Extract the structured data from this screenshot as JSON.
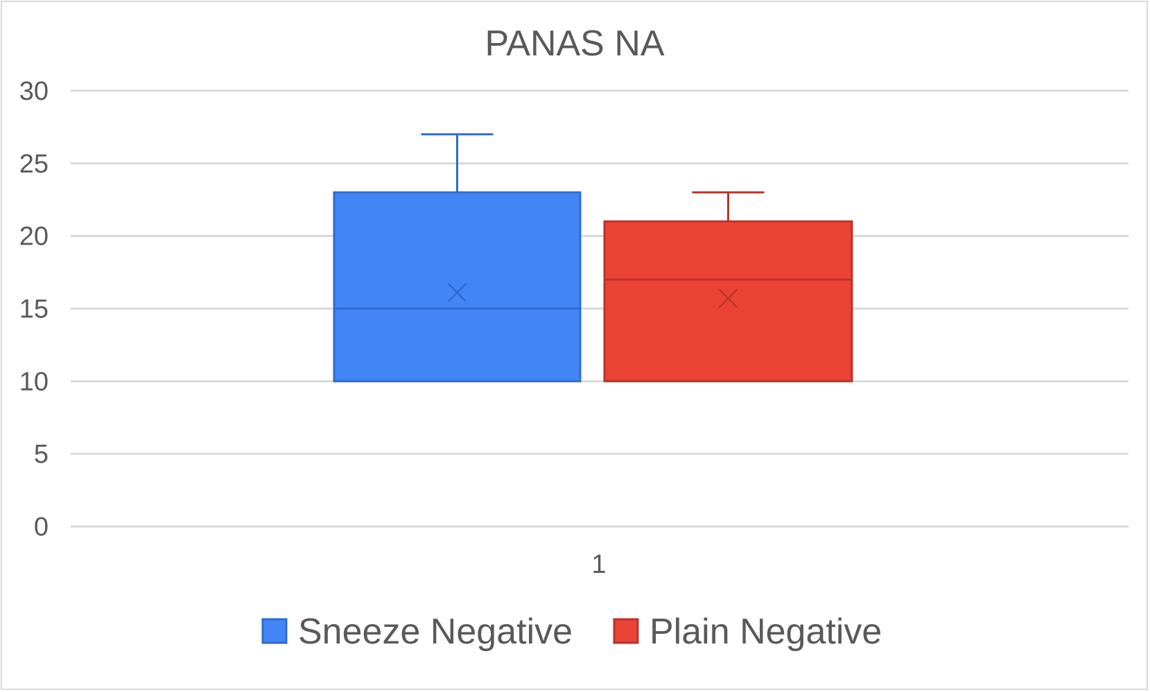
{
  "chart_data": {
    "type": "box",
    "title": "PANAS NA",
    "xlabel": "",
    "ylabel": "",
    "ylim": [
      0,
      30
    ],
    "yticks": [
      0,
      5,
      10,
      15,
      20,
      25,
      30
    ],
    "categories": [
      "1"
    ],
    "grid": true,
    "legend_position": "bottom",
    "series": [
      {
        "name": "Sneeze Negative",
        "color": "#4285F4",
        "stroke": "#2f6bd0",
        "min": 10,
        "q1": 10,
        "median": 15,
        "q3": 23,
        "max": 27,
        "mean": 16.1
      },
      {
        "name": "Plain Negative",
        "color": "#EA4335",
        "stroke": "#b8352a",
        "min": 10,
        "q1": 10,
        "median": 17,
        "q3": 21,
        "max": 23,
        "mean": 15.7
      }
    ]
  }
}
